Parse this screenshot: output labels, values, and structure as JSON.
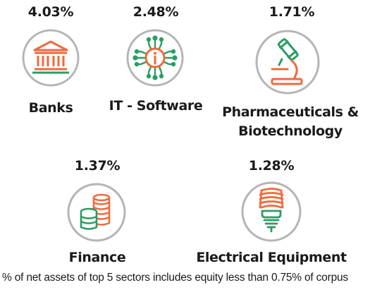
{
  "colors": {
    "green": "#2a9d64",
    "orange": "#ef6a3d",
    "circle": "#b5b5b5",
    "text": "#1a1a1a"
  },
  "sectors": [
    {
      "percentage": "4.03%",
      "name": "Banks",
      "icon": "bank-icon"
    },
    {
      "percentage": "2.48%",
      "name": "IT - Software",
      "icon": "chip-icon"
    },
    {
      "percentage": "1.71%",
      "name_line1": "Pharmaceuticals &",
      "name_line2": "Biotechnology",
      "icon": "microscope-icon"
    },
    {
      "percentage": "1.37%",
      "name": "Finance",
      "icon": "coins-icon"
    },
    {
      "percentage": "1.28%",
      "name": "Electrical Equipment",
      "icon": "bulb-icon"
    }
  ],
  "footnote": "% of net assets of top 5 sectors includes equity less than 0.75% of corpus"
}
